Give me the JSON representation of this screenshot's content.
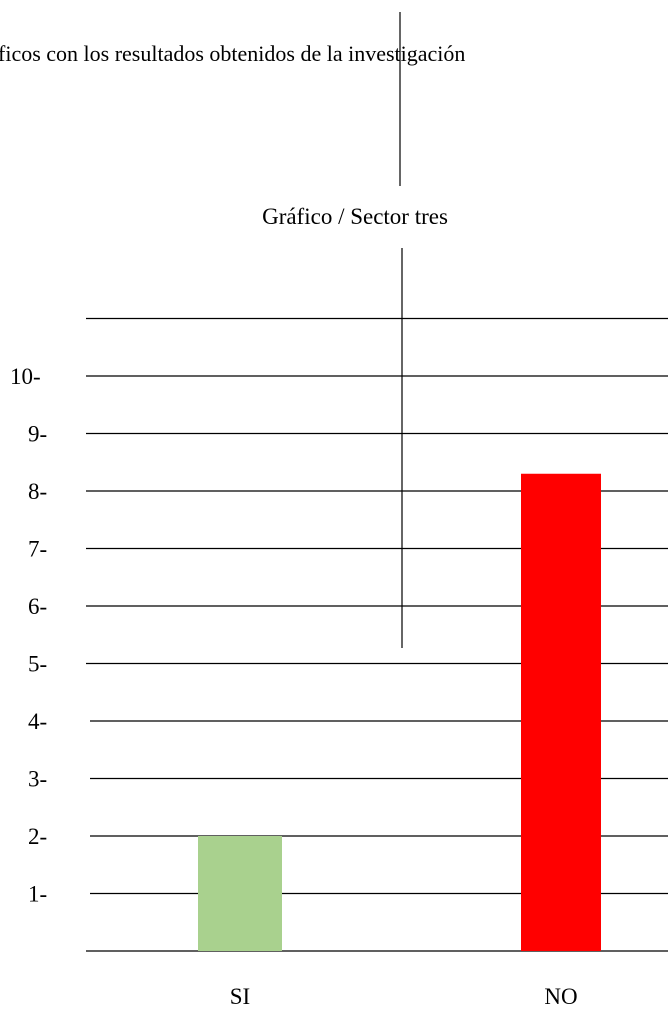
{
  "header": {
    "text": "ficos con los resultados obtenidos de la investigación"
  },
  "chart_data": {
    "type": "bar",
    "title": "Gráfico / Sector tres",
    "xlabel": "",
    "ylabel": "",
    "categories": [
      "SI",
      "NO"
    ],
    "values": [
      2,
      8.3
    ],
    "ylim": [
      0,
      11
    ],
    "yticks": [
      1,
      2,
      3,
      4,
      5,
      6,
      7,
      8,
      9,
      10
    ],
    "ytick_labels": [
      "1-",
      "2-",
      "3-",
      "4-",
      "5-",
      "6-",
      "7-",
      "8-",
      "9-",
      "10-"
    ],
    "grid": true,
    "legend": "none",
    "colors": [
      "#a9d18e",
      "#ff0000"
    ]
  }
}
